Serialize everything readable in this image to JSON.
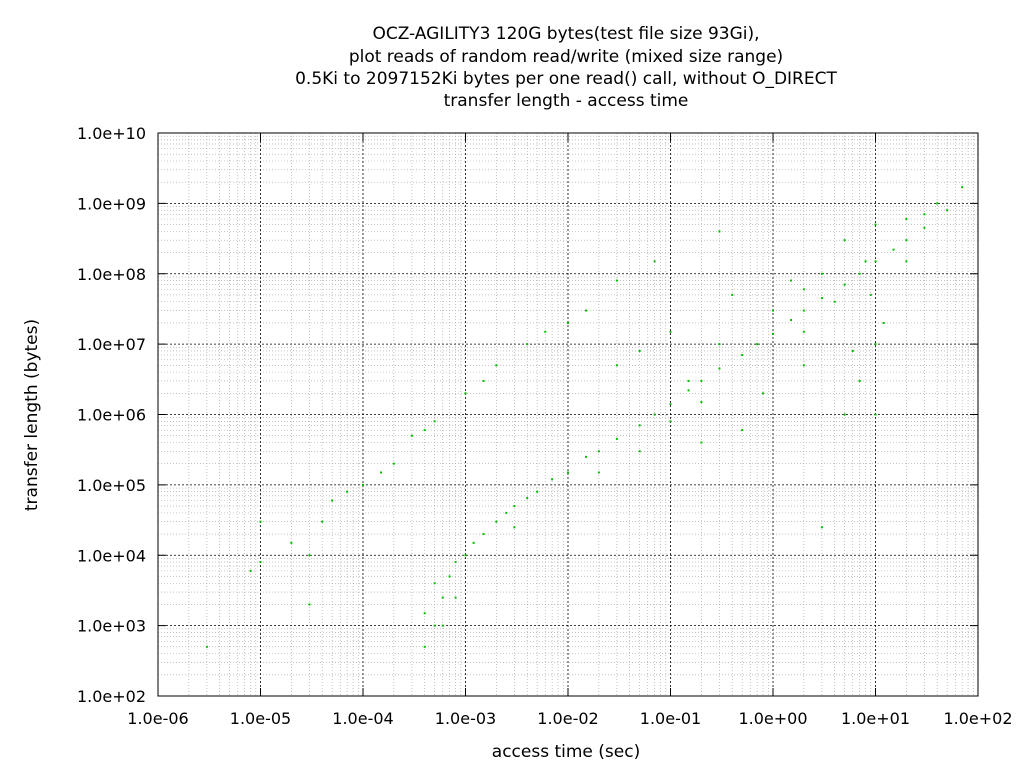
{
  "chart_data": {
    "type": "scatter",
    "title_lines": [
      "OCZ-AGILITY3 120G bytes(test file size 93Gi),",
      "plot reads of random read/write (mixed size range)",
      "0.5Ki to 2097152Ki bytes per one read() call, without O_DIRECT",
      "transfer length - access time"
    ],
    "xlabel": "access time (sec)",
    "ylabel": "transfer length (bytes)",
    "x_scale": "log",
    "y_scale": "log",
    "xlim": [
      1e-06,
      100
    ],
    "ylim": [
      100,
      10000000000.0
    ],
    "x_ticks": [
      {
        "value": 1e-06,
        "label": "1.0e-06"
      },
      {
        "value": 1e-05,
        "label": "1.0e-05"
      },
      {
        "value": 0.0001,
        "label": "1.0e-04"
      },
      {
        "value": 0.001,
        "label": "1.0e-03"
      },
      {
        "value": 0.01,
        "label": "1.0e-02"
      },
      {
        "value": 0.1,
        "label": "1.0e-01"
      },
      {
        "value": 1,
        "label": "1.0e+00"
      },
      {
        "value": 10,
        "label": "1.0e+01"
      },
      {
        "value": 100,
        "label": "1.0e+02"
      }
    ],
    "y_ticks": [
      {
        "value": 100.0,
        "label": "1.0e+02"
      },
      {
        "value": 1000.0,
        "label": "1.0e+03"
      },
      {
        "value": 10000.0,
        "label": "1.0e+04"
      },
      {
        "value": 100000.0,
        "label": "1.0e+05"
      },
      {
        "value": 1000000.0,
        "label": "1.0e+06"
      },
      {
        "value": 10000000.0,
        "label": "1.0e+07"
      },
      {
        "value": 100000000.0,
        "label": "1.0e+08"
      },
      {
        "value": 1000000000.0,
        "label": "1.0e+09"
      },
      {
        "value": 10000000000.0,
        "label": "1.0e+10"
      }
    ],
    "grid": true,
    "legend": "none",
    "point_color": "#00c000",
    "series": [
      {
        "points": [
          [
            0.0005,
            1000
          ],
          [
            0.0004,
            1500
          ],
          [
            0.0006,
            2500
          ],
          [
            0.0005,
            4000
          ],
          [
            0.0007,
            5000
          ],
          [
            0.0008,
            8000
          ],
          [
            0.001,
            10000
          ],
          [
            0.0012,
            15000
          ],
          [
            0.0015,
            20000
          ],
          [
            0.002,
            30000
          ],
          [
            0.0025,
            40000
          ],
          [
            0.003,
            50000
          ],
          [
            0.004,
            65000
          ],
          [
            0.005,
            80000
          ],
          [
            0.007,
            120000
          ],
          [
            0.01,
            150000
          ],
          [
            0.015,
            250000
          ],
          [
            0.02,
            300000
          ],
          [
            0.03,
            450000
          ],
          [
            0.05,
            700000
          ],
          [
            0.07,
            1000000
          ],
          [
            0.1,
            1400000
          ],
          [
            0.15,
            2200000
          ],
          [
            0.2,
            3000000
          ],
          [
            0.3,
            4500000
          ],
          [
            0.5,
            7000000
          ],
          [
            0.7,
            10000000
          ],
          [
            1,
            14000000
          ],
          [
            1.5,
            22000000
          ],
          [
            2,
            30000000
          ],
          [
            3,
            45000000
          ],
          [
            5,
            70000000
          ],
          [
            7,
            100000000
          ],
          [
            10,
            150000000
          ],
          [
            15,
            220000000
          ],
          [
            20,
            300000000
          ],
          [
            30,
            450000000
          ],
          [
            50,
            800000000
          ],
          [
            70,
            1700000000
          ],
          [
            0.003,
            25000
          ],
          [
            0.02,
            150000
          ],
          [
            0.2,
            1500000
          ],
          [
            2,
            15000000
          ],
          [
            20,
            150000000
          ],
          [
            0.0008,
            2500
          ],
          [
            0.0006,
            1000
          ],
          [
            0.0004,
            500
          ]
        ]
      },
      {
        "points": [
          [
            3e-06,
            500
          ],
          [
            8e-06,
            6000
          ],
          [
            1e-05,
            8000
          ],
          [
            1e-05,
            30000
          ],
          [
            2e-05,
            15000
          ],
          [
            3e-05,
            2000
          ],
          [
            3e-05,
            10000
          ],
          [
            4e-05,
            30000
          ],
          [
            5e-05,
            60000
          ],
          [
            0.0001,
            100000
          ],
          [
            0.0002,
            200000
          ],
          [
            0.0003,
            500000
          ],
          [
            0.0005,
            800000
          ],
          [
            0.001,
            2000000
          ],
          [
            0.002,
            5000000
          ],
          [
            0.004,
            10000000
          ],
          [
            0.01,
            20000000
          ],
          [
            0.015,
            30000000
          ],
          [
            0.03,
            80000000
          ],
          [
            0.07,
            150000000
          ],
          [
            0.3,
            400000000
          ],
          [
            7e-05,
            80000
          ],
          [
            0.00015,
            150000
          ],
          [
            0.0004,
            600000
          ],
          [
            0.0015,
            3000000
          ],
          [
            0.006,
            15000000
          ]
        ]
      },
      {
        "points": [
          [
            0.03,
            5000000
          ],
          [
            0.05,
            8000000
          ],
          [
            0.1,
            15000000
          ],
          [
            0.1,
            800000
          ],
          [
            0.2,
            400000
          ],
          [
            0.3,
            10000000
          ],
          [
            0.5,
            600000
          ],
          [
            1,
            30000000
          ],
          [
            2,
            5000000
          ],
          [
            2,
            60000000
          ],
          [
            3,
            25000
          ],
          [
            3,
            100000000
          ],
          [
            5,
            1000000
          ],
          [
            5,
            300000000
          ],
          [
            7,
            3000000
          ],
          [
            8,
            150000000
          ],
          [
            10,
            500000000
          ],
          [
            10,
            10000000
          ],
          [
            10,
            1000000
          ],
          [
            12,
            20000000
          ],
          [
            20,
            600000000
          ],
          [
            30,
            700000000
          ],
          [
            40,
            1000000000
          ],
          [
            1.5,
            80000000
          ],
          [
            4,
            40000000
          ],
          [
            6,
            8000000
          ],
          [
            0.8,
            2000000
          ],
          [
            0.4,
            50000000
          ],
          [
            9,
            50000000
          ],
          [
            0.15,
            3000000
          ],
          [
            0.05,
            300000
          ]
        ]
      }
    ]
  }
}
